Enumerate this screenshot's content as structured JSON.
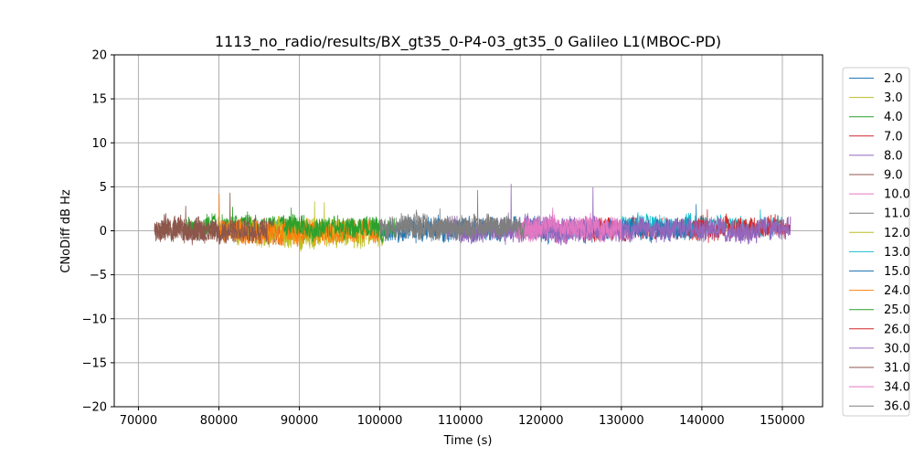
{
  "chart_data": {
    "type": "line",
    "title": "1113_no_radio/results/BX_gt35_0-P4-03_gt35_0 Galileo L1(MBOC-PD)",
    "xlabel": "Time (s)",
    "ylabel": "CNoDiff dB Hz",
    "xlim": [
      67000,
      155000
    ],
    "ylim": [
      -20,
      20
    ],
    "x_ticks": [
      70000,
      80000,
      90000,
      100000,
      110000,
      120000,
      130000,
      140000,
      150000
    ],
    "x_tick_labels": [
      "70000",
      "80000",
      "90000",
      "100000",
      "110000",
      "120000",
      "130000",
      "140000",
      "150000"
    ],
    "y_ticks": [
      -20,
      -15,
      -10,
      -5,
      0,
      5,
      10,
      15,
      20
    ],
    "y_tick_labels": [
      "−20",
      "−15",
      "−10",
      "−5",
      "0",
      "5",
      "10",
      "15",
      "20"
    ],
    "grid": true,
    "legend_position": "outside-right",
    "series": [
      {
        "name": "2.0",
        "color": "#1f77b4",
        "x_range": [
          100000,
          130000
        ],
        "mean": 0.1,
        "spread": 1.2,
        "peak": 1.8
      },
      {
        "name": "3.0",
        "color": "#bcbd22",
        "x_range": [
          88000,
          100500
        ],
        "mean": -0.3,
        "spread": 1.4,
        "peak": 3.3
      },
      {
        "name": "4.0",
        "color": "#2ca02c",
        "x_range": [
          76000,
          91000
        ],
        "mean": 0.5,
        "spread": 1.1,
        "peak": 2.7
      },
      {
        "name": "7.0",
        "color": "#d62728",
        "x_range": [
          125000,
          140000
        ],
        "mean": 0.2,
        "spread": 1.1,
        "peak": 1.5
      },
      {
        "name": "8.0",
        "color": "#9467bd",
        "x_range": [
          108000,
          124000
        ],
        "mean": 0.2,
        "spread": 1.3,
        "peak": 5.3
      },
      {
        "name": "9.0",
        "color": "#8c564b",
        "x_range": [
          72000,
          88000
        ],
        "mean": 0.0,
        "spread": 1.3,
        "peak": 4.3
      },
      {
        "name": "10.0",
        "color": "#e377c2",
        "x_range": [
          117000,
          131000
        ],
        "mean": 0.0,
        "spread": 1.2,
        "peak": 2.0
      },
      {
        "name": "11.0",
        "color": "#7f7f7f",
        "x_range": [
          102000,
          116000
        ],
        "mean": 0.4,
        "spread": 1.2,
        "peak": 4.6
      },
      {
        "name": "12.0",
        "color": "#bcbd22",
        "x_range": [
          82000,
          96000
        ],
        "mean": 0.0,
        "spread": 1.3,
        "peak": 3.2
      },
      {
        "name": "13.0",
        "color": "#17becf",
        "x_range": [
          130000,
          150000
        ],
        "mean": 0.6,
        "spread": 1.0,
        "peak": 2.4
      },
      {
        "name": "15.0",
        "color": "#1f77b4",
        "x_range": [
          130000,
          140000
        ],
        "mean": 0.1,
        "spread": 1.2,
        "peak": 3.0
      },
      {
        "name": "24.0",
        "color": "#ff7f0e",
        "x_range": [
          80000,
          100000
        ],
        "mean": -0.2,
        "spread": 1.3,
        "peak": 4.2
      },
      {
        "name": "25.0",
        "color": "#2ca02c",
        "x_range": [
          88000,
          102000
        ],
        "mean": 0.4,
        "spread": 1.1,
        "peak": 2.6
      },
      {
        "name": "26.0",
        "color": "#d62728",
        "x_range": [
          139000,
          151000
        ],
        "mean": 0.3,
        "spread": 1.2,
        "peak": 2.4
      },
      {
        "name": "30.0",
        "color": "#9467bd",
        "x_range": [
          120000,
          151000
        ],
        "mean": 0.1,
        "spread": 1.2,
        "peak": 4.9
      },
      {
        "name": "31.0",
        "color": "#8c564b",
        "x_range": [
          72000,
          86000
        ],
        "mean": 0.1,
        "spread": 1.2,
        "peak": 2.8
      },
      {
        "name": "34.0",
        "color": "#e377c2",
        "x_range": [
          117000,
          130000
        ],
        "mean": 0.3,
        "spread": 1.1,
        "peak": 2.6
      },
      {
        "name": "36.0",
        "color": "#7f7f7f",
        "x_range": [
          100000,
          118000
        ],
        "mean": 0.3,
        "spread": 1.1,
        "peak": 2.5
      }
    ]
  }
}
